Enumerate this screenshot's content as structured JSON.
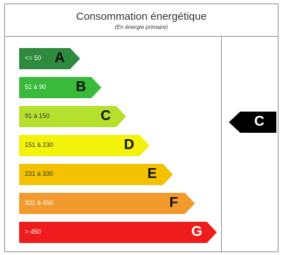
{
  "header": {
    "title": "Consommation énergétique",
    "subtitle": "(En énergie primaire)"
  },
  "classes": [
    {
      "range": "<= 50",
      "grade": "A",
      "color": "#2e8b3e"
    },
    {
      "range": "51 à 90",
      "grade": "B",
      "color": "#3aba3a"
    },
    {
      "range": "91 à 150",
      "grade": "C",
      "color": "#b6e02e"
    },
    {
      "range": "151 à 230",
      "grade": "D",
      "color": "#f2f20a"
    },
    {
      "range": "231 à 330",
      "grade": "E",
      "color": "#f4c200"
    },
    {
      "range": "331 à 450",
      "grade": "F",
      "color": "#f39a2e"
    },
    {
      "range": "> 450",
      "grade": "G",
      "color": "#ee1c1c"
    }
  ],
  "current": {
    "grade": "C"
  }
}
